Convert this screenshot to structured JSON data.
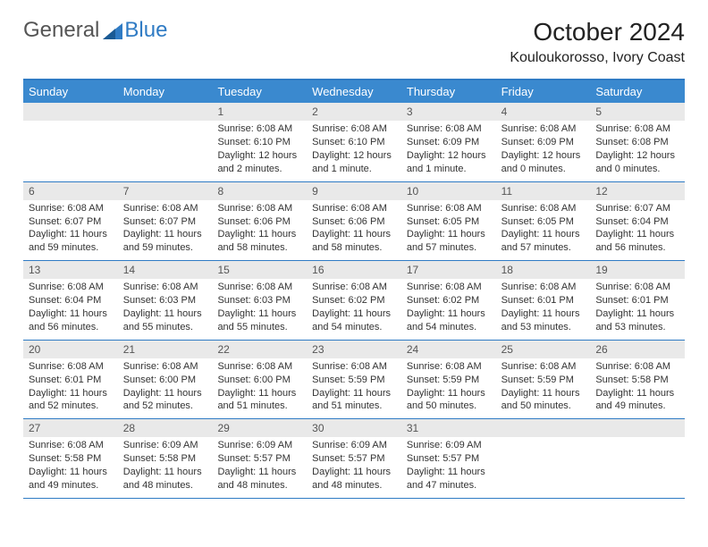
{
  "brand": {
    "general": "General",
    "blue": "Blue"
  },
  "header": {
    "month_title": "October 2024",
    "location": "Kouloukorosso, Ivory Coast"
  },
  "colors": {
    "accent": "#3a89cf",
    "border": "#2f7bc4",
    "daynum_bg": "#e9e9e9",
    "text": "#333333",
    "background": "#ffffff"
  },
  "weekdays": [
    "Sunday",
    "Monday",
    "Tuesday",
    "Wednesday",
    "Thursday",
    "Friday",
    "Saturday"
  ],
  "weeks": [
    [
      {
        "num": "",
        "sunrise": "",
        "sunset": "",
        "daylight": ""
      },
      {
        "num": "",
        "sunrise": "",
        "sunset": "",
        "daylight": ""
      },
      {
        "num": "1",
        "sunrise": "Sunrise: 6:08 AM",
        "sunset": "Sunset: 6:10 PM",
        "daylight": "Daylight: 12 hours and 2 minutes."
      },
      {
        "num": "2",
        "sunrise": "Sunrise: 6:08 AM",
        "sunset": "Sunset: 6:10 PM",
        "daylight": "Daylight: 12 hours and 1 minute."
      },
      {
        "num": "3",
        "sunrise": "Sunrise: 6:08 AM",
        "sunset": "Sunset: 6:09 PM",
        "daylight": "Daylight: 12 hours and 1 minute."
      },
      {
        "num": "4",
        "sunrise": "Sunrise: 6:08 AM",
        "sunset": "Sunset: 6:09 PM",
        "daylight": "Daylight: 12 hours and 0 minutes."
      },
      {
        "num": "5",
        "sunrise": "Sunrise: 6:08 AM",
        "sunset": "Sunset: 6:08 PM",
        "daylight": "Daylight: 12 hours and 0 minutes."
      }
    ],
    [
      {
        "num": "6",
        "sunrise": "Sunrise: 6:08 AM",
        "sunset": "Sunset: 6:07 PM",
        "daylight": "Daylight: 11 hours and 59 minutes."
      },
      {
        "num": "7",
        "sunrise": "Sunrise: 6:08 AM",
        "sunset": "Sunset: 6:07 PM",
        "daylight": "Daylight: 11 hours and 59 minutes."
      },
      {
        "num": "8",
        "sunrise": "Sunrise: 6:08 AM",
        "sunset": "Sunset: 6:06 PM",
        "daylight": "Daylight: 11 hours and 58 minutes."
      },
      {
        "num": "9",
        "sunrise": "Sunrise: 6:08 AM",
        "sunset": "Sunset: 6:06 PM",
        "daylight": "Daylight: 11 hours and 58 minutes."
      },
      {
        "num": "10",
        "sunrise": "Sunrise: 6:08 AM",
        "sunset": "Sunset: 6:05 PM",
        "daylight": "Daylight: 11 hours and 57 minutes."
      },
      {
        "num": "11",
        "sunrise": "Sunrise: 6:08 AM",
        "sunset": "Sunset: 6:05 PM",
        "daylight": "Daylight: 11 hours and 57 minutes."
      },
      {
        "num": "12",
        "sunrise": "Sunrise: 6:07 AM",
        "sunset": "Sunset: 6:04 PM",
        "daylight": "Daylight: 11 hours and 56 minutes."
      }
    ],
    [
      {
        "num": "13",
        "sunrise": "Sunrise: 6:08 AM",
        "sunset": "Sunset: 6:04 PM",
        "daylight": "Daylight: 11 hours and 56 minutes."
      },
      {
        "num": "14",
        "sunrise": "Sunrise: 6:08 AM",
        "sunset": "Sunset: 6:03 PM",
        "daylight": "Daylight: 11 hours and 55 minutes."
      },
      {
        "num": "15",
        "sunrise": "Sunrise: 6:08 AM",
        "sunset": "Sunset: 6:03 PM",
        "daylight": "Daylight: 11 hours and 55 minutes."
      },
      {
        "num": "16",
        "sunrise": "Sunrise: 6:08 AM",
        "sunset": "Sunset: 6:02 PM",
        "daylight": "Daylight: 11 hours and 54 minutes."
      },
      {
        "num": "17",
        "sunrise": "Sunrise: 6:08 AM",
        "sunset": "Sunset: 6:02 PM",
        "daylight": "Daylight: 11 hours and 54 minutes."
      },
      {
        "num": "18",
        "sunrise": "Sunrise: 6:08 AM",
        "sunset": "Sunset: 6:01 PM",
        "daylight": "Daylight: 11 hours and 53 minutes."
      },
      {
        "num": "19",
        "sunrise": "Sunrise: 6:08 AM",
        "sunset": "Sunset: 6:01 PM",
        "daylight": "Daylight: 11 hours and 53 minutes."
      }
    ],
    [
      {
        "num": "20",
        "sunrise": "Sunrise: 6:08 AM",
        "sunset": "Sunset: 6:01 PM",
        "daylight": "Daylight: 11 hours and 52 minutes."
      },
      {
        "num": "21",
        "sunrise": "Sunrise: 6:08 AM",
        "sunset": "Sunset: 6:00 PM",
        "daylight": "Daylight: 11 hours and 52 minutes."
      },
      {
        "num": "22",
        "sunrise": "Sunrise: 6:08 AM",
        "sunset": "Sunset: 6:00 PM",
        "daylight": "Daylight: 11 hours and 51 minutes."
      },
      {
        "num": "23",
        "sunrise": "Sunrise: 6:08 AM",
        "sunset": "Sunset: 5:59 PM",
        "daylight": "Daylight: 11 hours and 51 minutes."
      },
      {
        "num": "24",
        "sunrise": "Sunrise: 6:08 AM",
        "sunset": "Sunset: 5:59 PM",
        "daylight": "Daylight: 11 hours and 50 minutes."
      },
      {
        "num": "25",
        "sunrise": "Sunrise: 6:08 AM",
        "sunset": "Sunset: 5:59 PM",
        "daylight": "Daylight: 11 hours and 50 minutes."
      },
      {
        "num": "26",
        "sunrise": "Sunrise: 6:08 AM",
        "sunset": "Sunset: 5:58 PM",
        "daylight": "Daylight: 11 hours and 49 minutes."
      }
    ],
    [
      {
        "num": "27",
        "sunrise": "Sunrise: 6:08 AM",
        "sunset": "Sunset: 5:58 PM",
        "daylight": "Daylight: 11 hours and 49 minutes."
      },
      {
        "num": "28",
        "sunrise": "Sunrise: 6:09 AM",
        "sunset": "Sunset: 5:58 PM",
        "daylight": "Daylight: 11 hours and 48 minutes."
      },
      {
        "num": "29",
        "sunrise": "Sunrise: 6:09 AM",
        "sunset": "Sunset: 5:57 PM",
        "daylight": "Daylight: 11 hours and 48 minutes."
      },
      {
        "num": "30",
        "sunrise": "Sunrise: 6:09 AM",
        "sunset": "Sunset: 5:57 PM",
        "daylight": "Daylight: 11 hours and 48 minutes."
      },
      {
        "num": "31",
        "sunrise": "Sunrise: 6:09 AM",
        "sunset": "Sunset: 5:57 PM",
        "daylight": "Daylight: 11 hours and 47 minutes."
      },
      {
        "num": "",
        "sunrise": "",
        "sunset": "",
        "daylight": ""
      },
      {
        "num": "",
        "sunrise": "",
        "sunset": "",
        "daylight": ""
      }
    ]
  ]
}
